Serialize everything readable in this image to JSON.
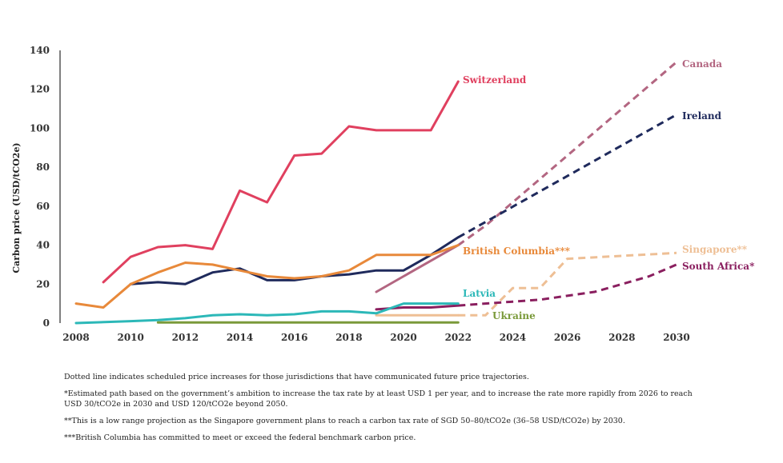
{
  "chart_data": {
    "type": "line",
    "ylabel": "Carbon price (USD/tCO2e)",
    "xlabel": "",
    "xlim": [
      2008,
      2030
    ],
    "ylim": [
      0,
      140
    ],
    "x_ticks": [
      2008,
      2010,
      2012,
      2014,
      2016,
      2018,
      2020,
      2022,
      2024,
      2026,
      2028,
      2030
    ],
    "y_ticks": [
      0,
      20,
      40,
      60,
      80,
      100,
      120,
      140
    ],
    "series": [
      {
        "name": "Switzerland",
        "label": "Switzerland",
        "color": "#e0405f",
        "x": [
          2009,
          2010,
          2011,
          2012,
          2013,
          2014,
          2015,
          2016,
          2017,
          2018,
          2019,
          2020,
          2021,
          2022
        ],
        "values": [
          21,
          34,
          39,
          40,
          38,
          68,
          62,
          86,
          87,
          101,
          99,
          99,
          99,
          124
        ],
        "dashed_from": null
      },
      {
        "name": "Canada",
        "label": "Canada",
        "color": "#b36681",
        "x": [
          2019,
          2020,
          2021,
          2022,
          2023,
          2030
        ],
        "values": [
          16,
          24,
          32,
          40,
          50,
          134
        ],
        "dashed_from": 2022
      },
      {
        "name": "Ireland",
        "label": "Ireland",
        "color": "#1f2a5c",
        "x": [
          2010,
          2011,
          2012,
          2013,
          2014,
          2015,
          2016,
          2017,
          2018,
          2019,
          2020,
          2021,
          2022,
          2030
        ],
        "values": [
          20,
          21,
          20,
          26,
          28,
          22,
          22,
          24,
          25,
          27,
          27,
          35,
          44,
          107
        ],
        "dashed_from": 2022
      },
      {
        "name": "British Columbia",
        "label": "British Columbia***",
        "color": "#e8893a",
        "x": [
          2008,
          2009,
          2010,
          2011,
          2012,
          2013,
          2014,
          2015,
          2016,
          2017,
          2018,
          2019,
          2020,
          2021,
          2022
        ],
        "values": [
          10,
          8,
          20,
          26,
          31,
          30,
          27,
          24,
          23,
          24,
          27,
          35,
          35,
          35,
          40
        ],
        "dashed_from": null
      },
      {
        "name": "Singapore",
        "label": "Singapore**",
        "color": "#eebf95",
        "x": [
          2019,
          2020,
          2021,
          2022,
          2023,
          2024,
          2025,
          2026,
          2030
        ],
        "values": [
          4,
          4,
          4,
          4,
          4,
          18,
          18,
          33,
          36
        ],
        "dashed_from": 2022
      },
      {
        "name": "South Africa",
        "label": "South Africa*",
        "color": "#8a1f5f",
        "x": [
          2019,
          2020,
          2021,
          2022,
          2023,
          2024,
          2025,
          2026,
          2027,
          2028,
          2029,
          2030
        ],
        "values": [
          7,
          8,
          8,
          9,
          10,
          11,
          12,
          14,
          16,
          20,
          24,
          30
        ],
        "dashed_from": 2022
      },
      {
        "name": "Latvia",
        "label": "Latvia",
        "color": "#2cb8b8",
        "x": [
          2008,
          2010,
          2011,
          2012,
          2013,
          2014,
          2015,
          2016,
          2017,
          2018,
          2019,
          2020,
          2021,
          2022
        ],
        "values": [
          0,
          1,
          1.5,
          2.5,
          4,
          4.5,
          4,
          4.5,
          6,
          6,
          5,
          10,
          10,
          10
        ],
        "dashed_from": null
      },
      {
        "name": "Ukraine",
        "label": "Ukraine",
        "color": "#7a9a3a",
        "x": [
          2011,
          2012,
          2013,
          2014,
          2015,
          2016,
          2017,
          2018,
          2019,
          2020,
          2021,
          2022
        ],
        "values": [
          0.3,
          0.3,
          0.3,
          0.3,
          0.3,
          0.3,
          0.3,
          0.3,
          0.3,
          0.3,
          0.3,
          0.3
        ],
        "dashed_from": null
      }
    ]
  },
  "notes": {
    "dotted": "Dotted line indicates scheduled price increases for those jurisdictions that have communicated future price trajectories.",
    "footnote1": "*Estimated path based on the government’s ambition to increase the tax rate by at least USD 1 per year, and to increase the rate more rapidly from 2026 to reach USD 30/tCO2e in 2030 and USD 120/tCO2e beyond 2050.",
    "footnote2": "**This is a low range projection as the Singapore government plans to reach a carbon tax rate of SGD 50–80/tCO2e (36–58 USD/tCO2e) by 2030.",
    "footnote3": "***British Columbia has committed to meet or exceed the federal benchmark carbon price."
  }
}
